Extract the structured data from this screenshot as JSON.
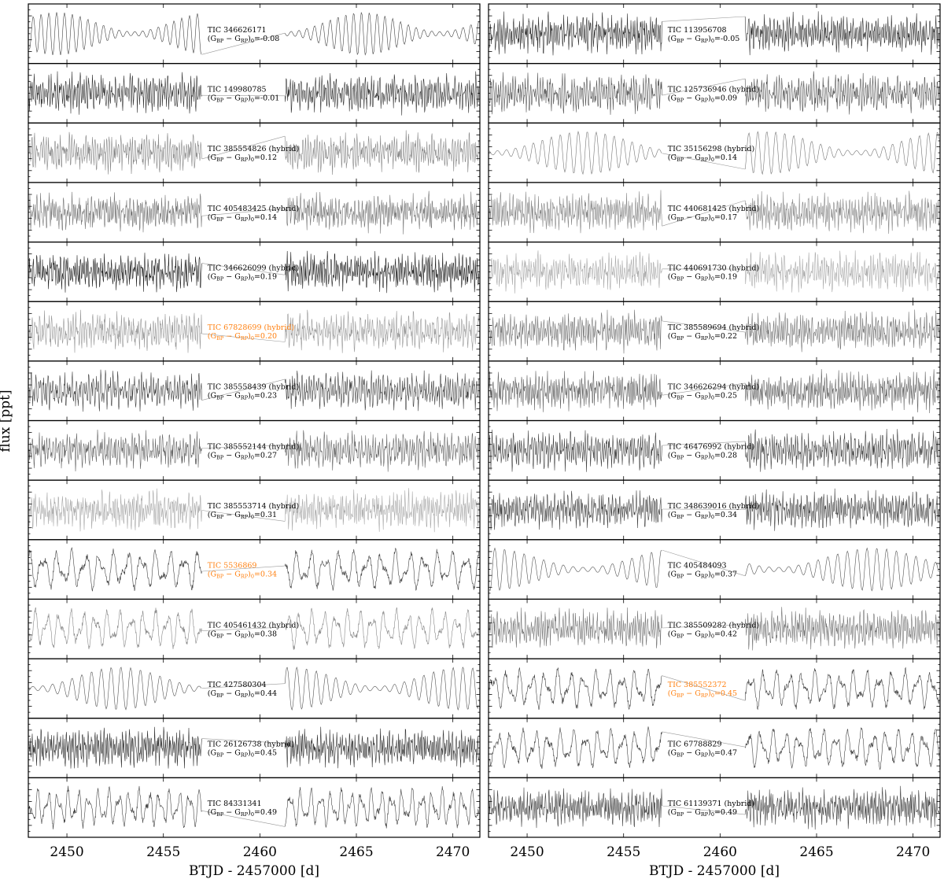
{
  "figure": {
    "ylabel": "flux [ppt]",
    "color_index_name": [
      "(G",
      "BP",
      " − G",
      "RP",
      ")",
      "0",
      "="
    ],
    "highlight_color": "#ff7f0e",
    "gap": [
      2457.0,
      2461.3
    ]
  },
  "chart_data": [
    {
      "type": "line",
      "xlabel": "BTJD - 2457000 [d]",
      "xlim": [
        2448,
        2471.4
      ],
      "xticks": [
        2450,
        2455,
        2460,
        2465,
        2470
      ],
      "panels": [
        {
          "label": "TIC 346626171",
          "color_index": "-0.08",
          "style": "sine",
          "color": "#444"
        },
        {
          "label": "TIC 149980785",
          "color_index": "-0.01",
          "style": "noise",
          "color": "#333"
        },
        {
          "label": "TIC 385554826 (hybrid)",
          "color_index": "0.12",
          "style": "noise",
          "color": "#888"
        },
        {
          "label": "TIC 405483425 (hybrid)",
          "color_index": "0.14",
          "style": "noise",
          "color": "#777"
        },
        {
          "label": "TIC 346626099 (hybrid)",
          "color_index": "0.19",
          "style": "noise",
          "color": "#222"
        },
        {
          "label": "TIC 67828699 (hybrid)",
          "color_index": "0.20",
          "style": "noise",
          "color": "#999",
          "highlight": true
        },
        {
          "label": "TIC 385558439 (hybrid)",
          "color_index": "0.23",
          "style": "noise",
          "color": "#444"
        },
        {
          "label": "TIC 385552144 (hybrid)",
          "color_index": "0.27",
          "style": "noise",
          "color": "#666"
        },
        {
          "label": "TIC 385553714 (hybrid)",
          "color_index": "0.31",
          "style": "noise",
          "color": "#aaa"
        },
        {
          "label": "TIC 5536869",
          "color_index": "0.34",
          "style": "wave",
          "color": "#444",
          "highlight": true
        },
        {
          "label": "TIC 405461432 (hybrid)",
          "color_index": "0.38",
          "style": "wave",
          "color": "#888"
        },
        {
          "label": "TIC 427580304",
          "color_index": "0.44",
          "style": "sine",
          "color": "#555"
        },
        {
          "label": "TIC 26126738 (hybrid)",
          "color_index": "0.45",
          "style": "noise",
          "color": "#333"
        },
        {
          "label": "TIC 84331341",
          "color_index": "0.49",
          "style": "wave",
          "color": "#444"
        }
      ]
    },
    {
      "type": "line",
      "xlabel": "BTJD - 2457000 [d]",
      "xlim": [
        2448,
        2471.4
      ],
      "xticks": [
        2450,
        2455,
        2460,
        2465,
        2470
      ],
      "panels": [
        {
          "label": "TIC 113956708",
          "color_index": "-0.05",
          "style": "noise",
          "color": "#333"
        },
        {
          "label": "TIC 125736946 (hybrid)",
          "color_index": "0.09",
          "style": "noise",
          "color": "#555"
        },
        {
          "label": "TIC 35156298 (hybrid)",
          "color_index": "0.14",
          "style": "sine",
          "color": "#777"
        },
        {
          "label": "TIC 440681425 (hybrid)",
          "color_index": "0.17",
          "style": "noise",
          "color": "#888"
        },
        {
          "label": "TIC 440691730 (hybrid)",
          "color_index": "0.19",
          "style": "noise",
          "color": "#aaa"
        },
        {
          "label": "TIC 385589694 (hybrid)",
          "color_index": "0.22",
          "style": "noise",
          "color": "#777"
        },
        {
          "label": "TIC 346626294 (hybrid)",
          "color_index": "0.25",
          "style": "noise",
          "color": "#666"
        },
        {
          "label": "TIC 46476992 (hybrid)",
          "color_index": "0.28",
          "style": "noise",
          "color": "#444"
        },
        {
          "label": "TIC 348639016 (hybrid)",
          "color_index": "0.34",
          "style": "noise",
          "color": "#444"
        },
        {
          "label": "TIC 405484093",
          "color_index": "0.37",
          "style": "sine",
          "color": "#555"
        },
        {
          "label": "TIC 385509282 (hybrid)",
          "color_index": "0.42",
          "style": "noise",
          "color": "#777"
        },
        {
          "label": "TIC 385552372",
          "color_index": "0.45",
          "style": "wave",
          "color": "#444",
          "highlight": true
        },
        {
          "label": "TIC 67788829",
          "color_index": "0.47",
          "style": "wave",
          "color": "#444"
        },
        {
          "label": "TIC 61139371 (hybrid)",
          "color_index": "0.49",
          "style": "noise",
          "color": "#444"
        }
      ]
    }
  ]
}
